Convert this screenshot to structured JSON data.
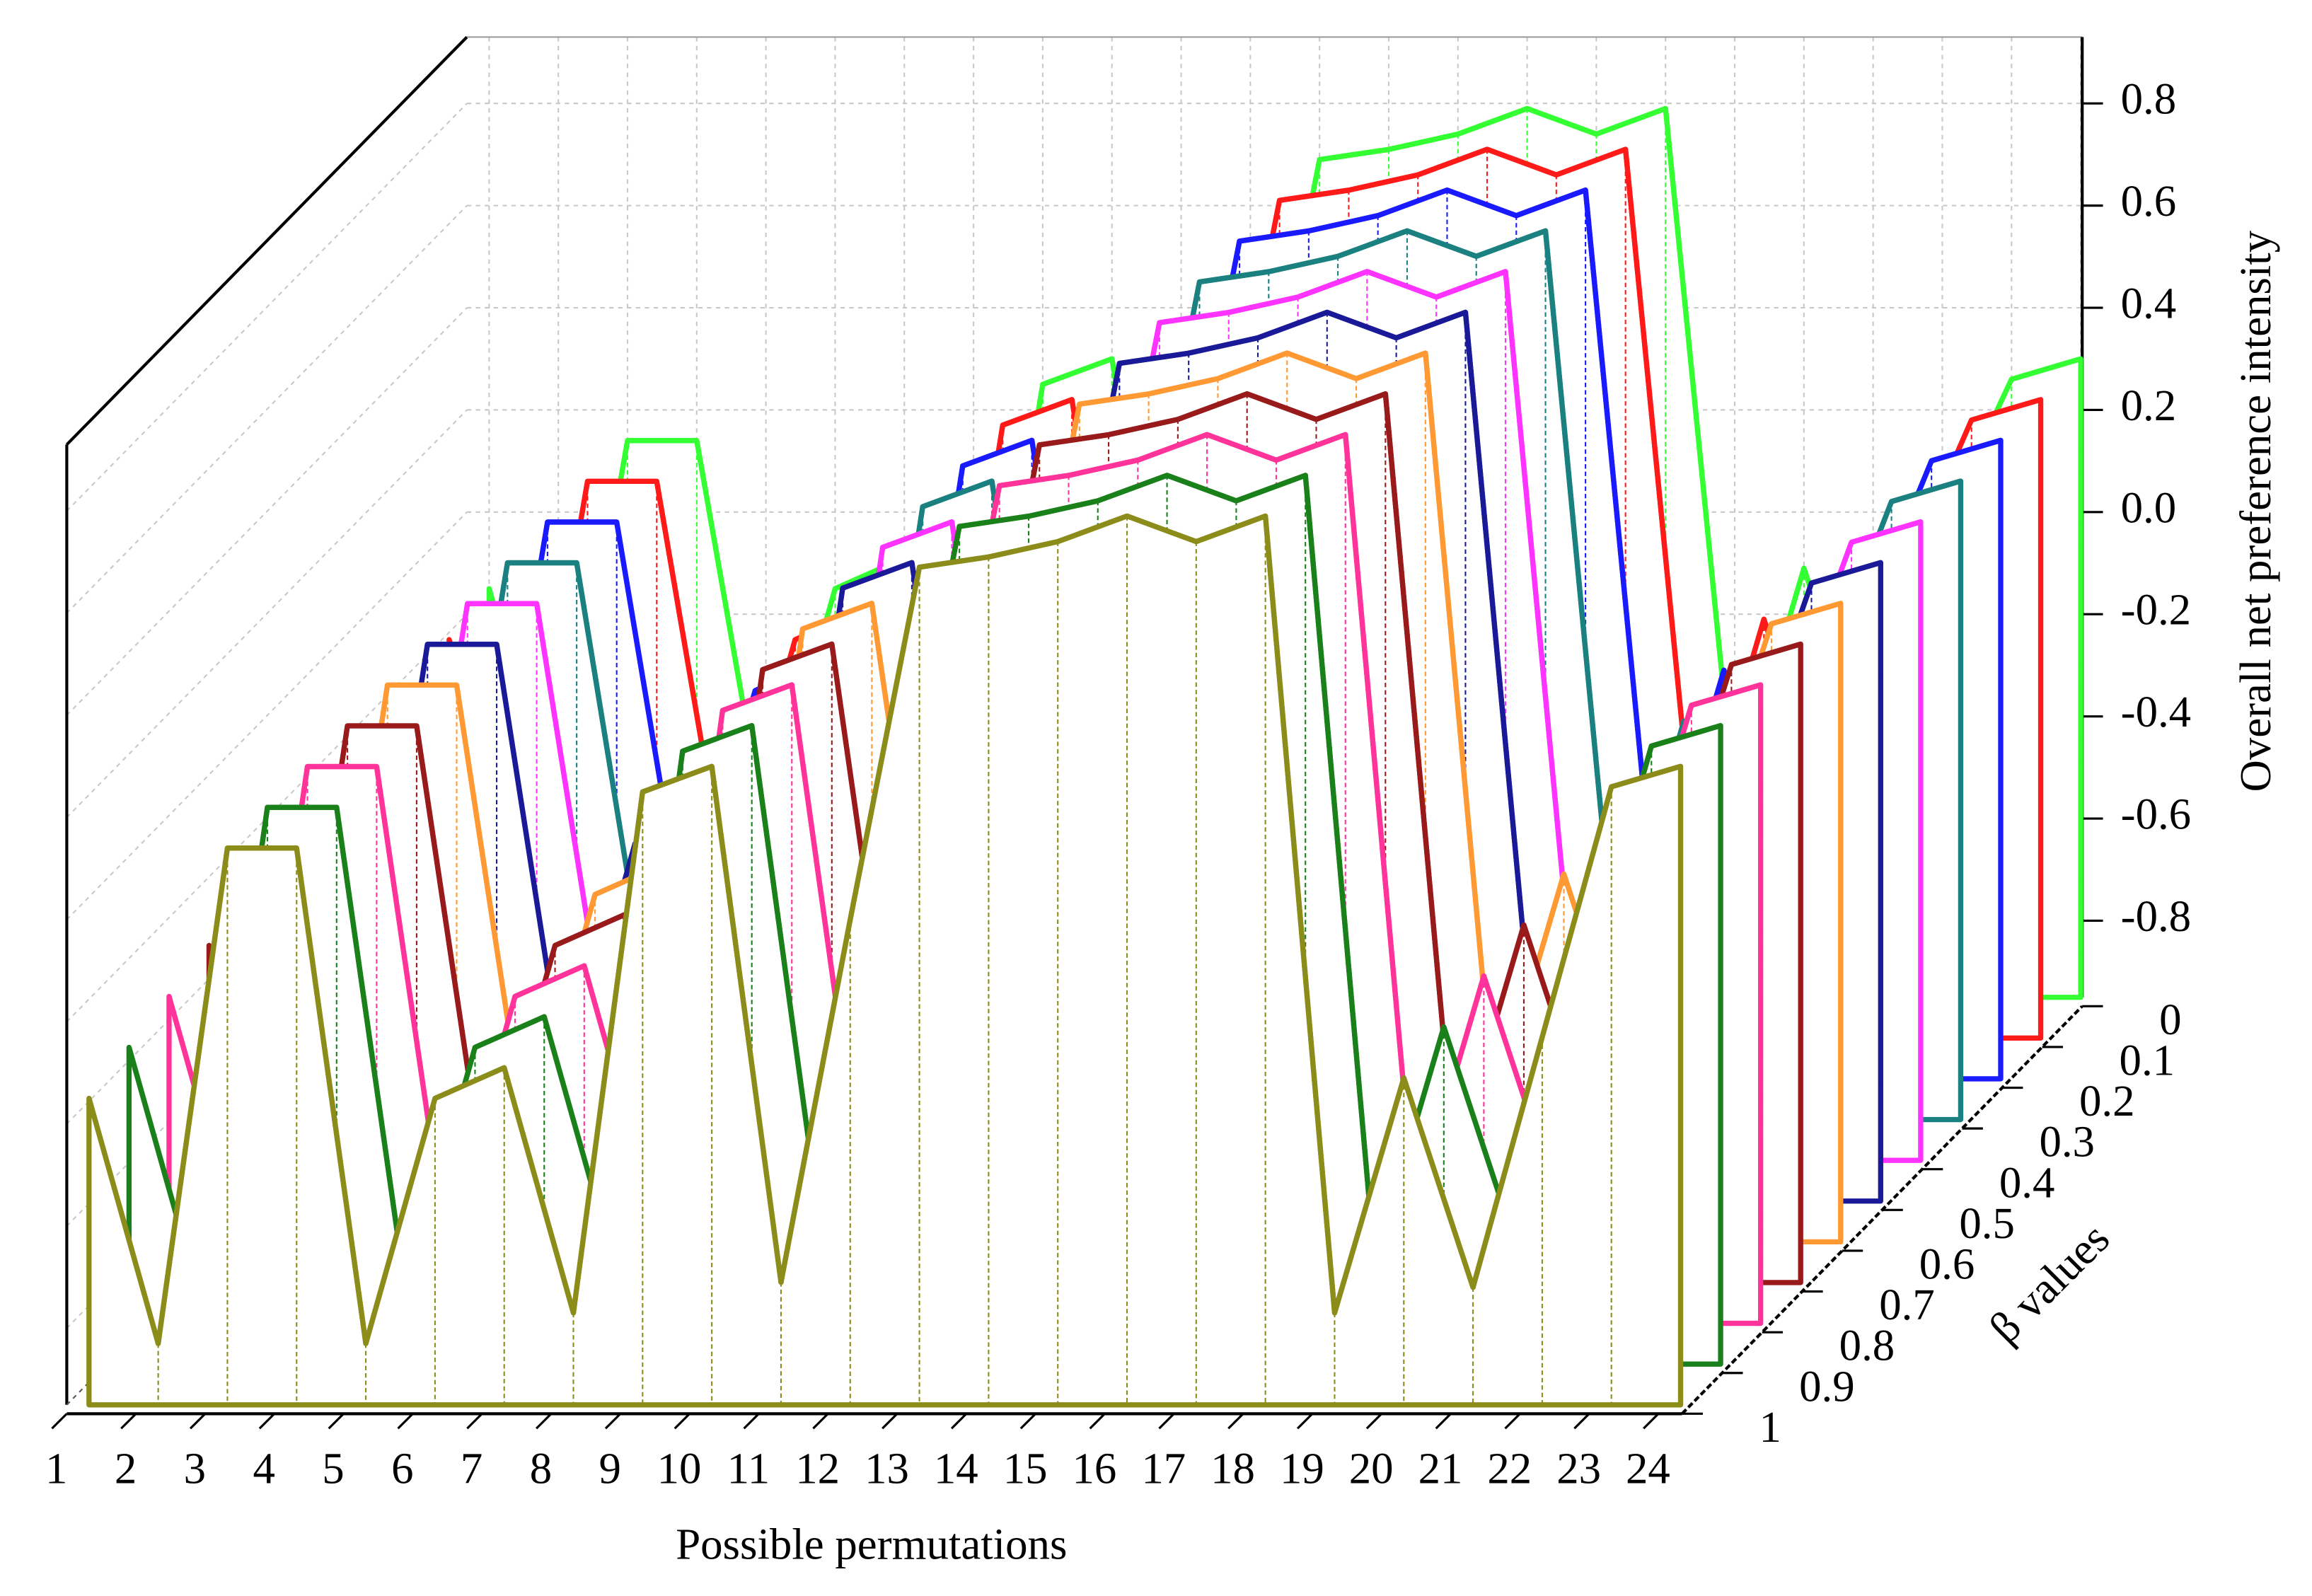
{
  "chart_data": {
    "type": "waterfall3d",
    "x_label": "Possible permutations",
    "z_label": "Overall net preference intensity",
    "depth_label": "β values",
    "categories": [
      "1",
      "2",
      "3",
      "4",
      "5",
      "6",
      "7",
      "8",
      "9",
      "10",
      "11",
      "12",
      "13",
      "14",
      "15",
      "16",
      "17",
      "18",
      "19",
      "20",
      "21",
      "22",
      "23",
      "24"
    ],
    "zlim": [
      -0.95,
      0.93
    ],
    "zticks": [
      -0.8,
      -0.6,
      -0.4,
      -0.2,
      {
        "value": 0,
        "label": "0.0"
      },
      0.2,
      0.4,
      0.6,
      0.8
    ],
    "grid": true,
    "series": [
      {
        "name": "0",
        "color": "#33ff33",
        "values": [
          -0.15,
          -0.63,
          0.14,
          0.14,
          -0.63,
          -0.15,
          -0.09,
          -0.57,
          0.25,
          0.3,
          -0.51,
          0.0,
          0.69,
          0.71,
          0.74,
          0.79,
          0.74,
          0.79,
          -0.57,
          -0.11,
          -0.52,
          -0.03,
          0.26,
          0.3
        ]
      },
      {
        "name": "0.1",
        "color": "#ff1a1a",
        "values": [
          -0.17,
          -0.65,
          0.14,
          0.14,
          -0.65,
          -0.17,
          -0.11,
          -0.59,
          0.25,
          0.3,
          -0.53,
          0.0,
          0.69,
          0.71,
          0.74,
          0.79,
          0.74,
          0.79,
          -0.59,
          -0.13,
          -0.54,
          -0.05,
          0.26,
          0.3
        ]
      },
      {
        "name": "0.2",
        "color": "#1a1aff",
        "values": [
          -0.19,
          -0.67,
          0.14,
          0.14,
          -0.67,
          -0.19,
          -0.13,
          -0.61,
          0.25,
          0.3,
          -0.55,
          0.0,
          0.69,
          0.71,
          0.74,
          0.79,
          0.74,
          0.79,
          -0.61,
          -0.15,
          -0.56,
          -0.07,
          0.26,
          0.3
        ]
      },
      {
        "name": "0.3",
        "color": "#1a8080",
        "values": [
          -0.21,
          -0.69,
          0.14,
          0.14,
          -0.69,
          -0.21,
          -0.15,
          -0.63,
          0.25,
          0.3,
          -0.57,
          0.0,
          0.69,
          0.71,
          0.74,
          0.79,
          0.74,
          0.79,
          -0.63,
          -0.17,
          -0.58,
          -0.09,
          0.26,
          0.3
        ]
      },
      {
        "name": "0.4",
        "color": "#ff33ff",
        "values": [
          -0.23,
          -0.71,
          0.14,
          0.14,
          -0.71,
          -0.23,
          -0.17,
          -0.65,
          0.25,
          0.3,
          -0.59,
          0.0,
          0.69,
          0.71,
          0.74,
          0.79,
          0.74,
          0.79,
          -0.65,
          -0.19,
          -0.6,
          -0.11,
          0.26,
          0.3
        ]
      },
      {
        "name": "0.5",
        "color": "#1a1a99",
        "values": [
          -0.25,
          -0.73,
          0.14,
          0.14,
          -0.73,
          -0.25,
          -0.19,
          -0.67,
          0.25,
          0.3,
          -0.61,
          0.0,
          0.69,
          0.71,
          0.74,
          0.79,
          0.74,
          0.79,
          -0.67,
          -0.21,
          -0.62,
          -0.13,
          0.26,
          0.3
        ]
      },
      {
        "name": "0.6",
        "color": "#ff9933",
        "values": [
          -0.27,
          -0.75,
          0.14,
          0.14,
          -0.75,
          -0.27,
          -0.21,
          -0.69,
          0.25,
          0.3,
          -0.63,
          0.0,
          0.69,
          0.71,
          0.74,
          0.79,
          0.74,
          0.79,
          -0.69,
          -0.23,
          -0.64,
          -0.15,
          0.26,
          0.3
        ]
      },
      {
        "name": "0.7",
        "color": "#991a1a",
        "values": [
          -0.29,
          -0.77,
          0.14,
          0.14,
          -0.77,
          -0.29,
          -0.23,
          -0.71,
          0.25,
          0.3,
          -0.65,
          0.0,
          0.69,
          0.71,
          0.74,
          0.79,
          0.74,
          0.79,
          -0.71,
          -0.25,
          -0.66,
          -0.17,
          0.26,
          0.3
        ]
      },
      {
        "name": "0.8",
        "color": "#ff3399",
        "values": [
          -0.31,
          -0.79,
          0.14,
          0.14,
          -0.79,
          -0.31,
          -0.25,
          -0.73,
          0.25,
          0.3,
          -0.67,
          0.0,
          0.69,
          0.71,
          0.74,
          0.79,
          0.74,
          0.79,
          -0.73,
          -0.27,
          -0.68,
          -0.19,
          0.26,
          0.3
        ]
      },
      {
        "name": "0.9",
        "color": "#1a801a",
        "values": [
          -0.33,
          -0.81,
          0.14,
          0.14,
          -0.81,
          -0.33,
          -0.27,
          -0.75,
          0.25,
          0.3,
          -0.69,
          0.0,
          0.69,
          0.71,
          0.74,
          0.79,
          0.74,
          0.79,
          -0.75,
          -0.29,
          -0.7,
          -0.21,
          0.26,
          0.3
        ]
      },
      {
        "name": "1",
        "color": "#8c8c1a",
        "values": [
          -0.35,
          -0.83,
          0.14,
          0.14,
          -0.83,
          -0.35,
          -0.29,
          -0.77,
          0.25,
          0.3,
          -0.71,
          0.0,
          0.69,
          0.71,
          0.74,
          0.79,
          0.74,
          0.79,
          -0.77,
          -0.31,
          -0.72,
          -0.23,
          0.26,
          0.3
        ]
      }
    ]
  }
}
